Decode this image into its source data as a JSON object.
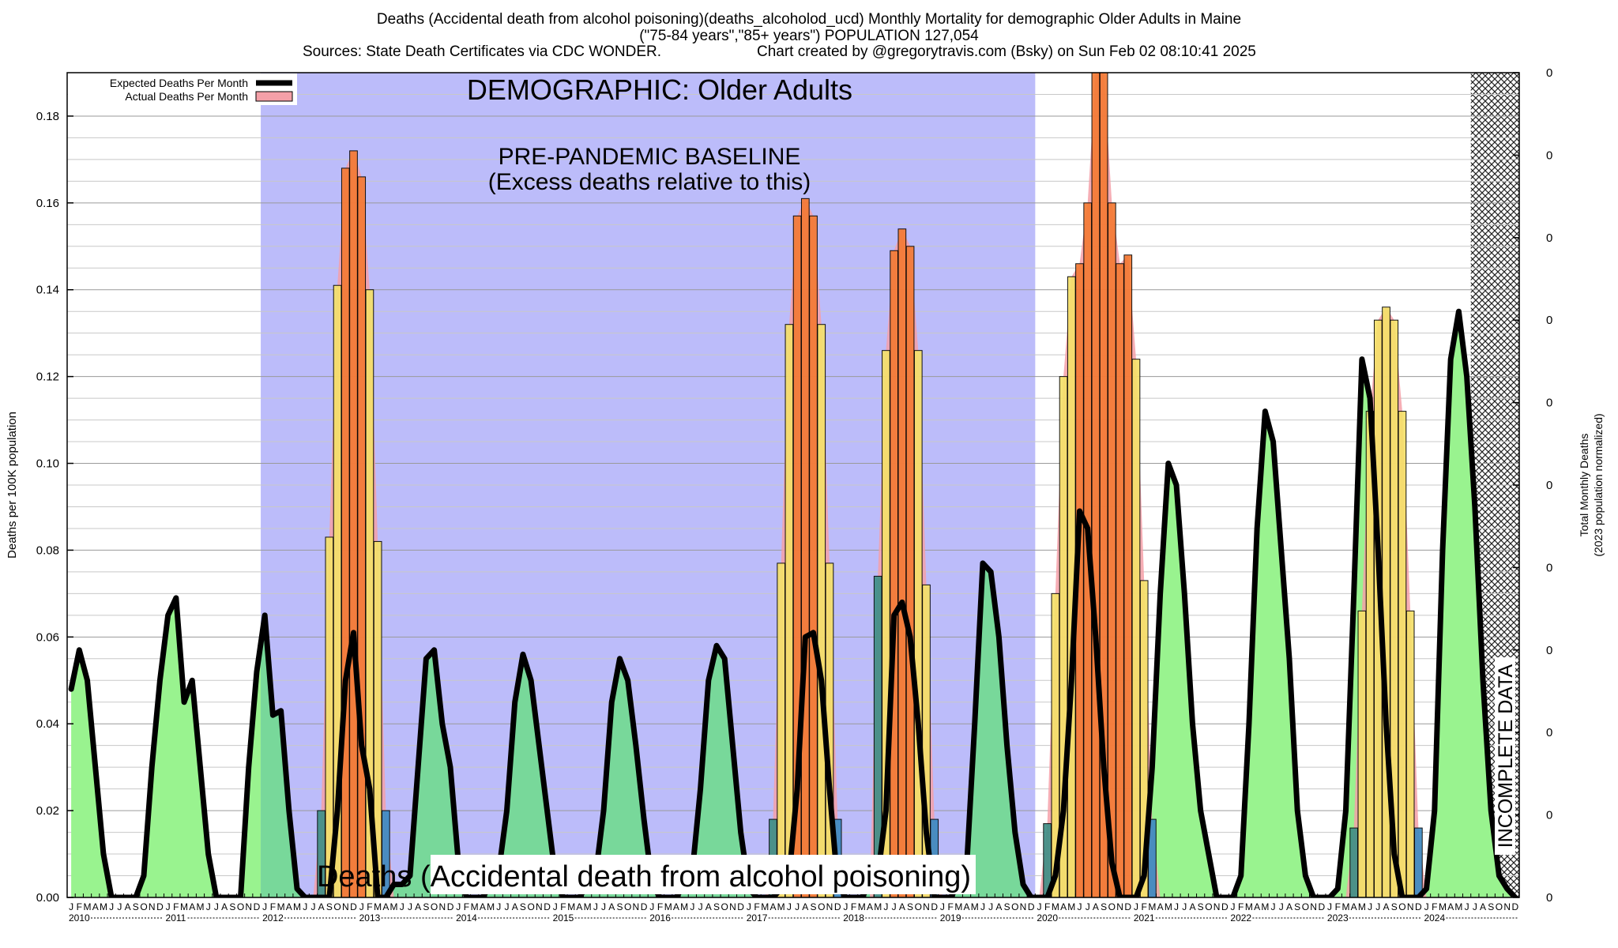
{
  "header": {
    "line1": "Deaths (Accidental death from alcohol poisoning)(deaths_alcoholod_ucd) Monthly Mortality for demographic Older Adults in Maine",
    "line2": "(\"75-84 years\",\"85+ years\") POPULATION 127,054",
    "line3_left": "Sources: State Death Certificates via CDC WONDER.",
    "line3_right": "Chart created by @gregorytravis.com (Bsky) on Sun Feb 02 08:10:41 2025"
  },
  "colors": {
    "baseline_band": "#bcbcfa",
    "expected_fill": "#99f38f",
    "expected_fill_baseline": "#78d89a",
    "expected_line": "#000000",
    "actual_fill": "#f4a0a8",
    "bar_yellow": "#f5e06a",
    "bar_orange": "#f47a34",
    "bar_teal": "#3f8f86",
    "bar_blue": "#3d8ac2"
  },
  "chart_data": {
    "type": "line",
    "ylabel": "Deaths per 100K population",
    "y2label_line1": "Total Monthly Deaths",
    "y2label_line2": "(2023 population normalized)",
    "ylim": [
      0,
      0.19
    ],
    "yticks": [
      "0.00",
      "0.02",
      "0.04",
      "0.06",
      "0.08",
      "0.10",
      "0.12",
      "0.14",
      "0.16",
      "0.18"
    ],
    "y2ticks": [
      "0",
      "0",
      "0",
      "0",
      "0",
      "0",
      "0",
      "0",
      "0",
      "0",
      "0"
    ],
    "legend": {
      "placement": "top-left",
      "expected_label": "Expected Deaths Per Month",
      "actual_label": "Actual Deaths Per Month"
    },
    "annotations": {
      "demographic": "DEMOGRAPHIC: Older Adults",
      "baseline_line1": "PRE-PANDEMIC BASELINE",
      "baseline_line2": "(Excess deaths relative to this)",
      "cause": "Deaths (Accidental death from alcohol poisoning)",
      "incomplete": "INCOMPLETE DATA"
    },
    "baseline_period": [
      "2012-01",
      "2019-12"
    ],
    "incomplete_period": [
      "2024-07",
      "2024-12"
    ],
    "month_letters": [
      "J",
      "F",
      "M",
      "A",
      "M",
      "J",
      "J",
      "A",
      "S",
      "O",
      "N",
      "D"
    ],
    "years": [
      "2010",
      "2011",
      "2012",
      "2013",
      "2014",
      "2015",
      "2016",
      "2017",
      "2018",
      "2019",
      "2020",
      "2021",
      "2022",
      "2023",
      "2024"
    ],
    "x_start": "2010-01",
    "expected": [
      0.048,
      0.057,
      0.05,
      0.03,
      0.01,
      0.0,
      0.0,
      0.0,
      0.0,
      0.005,
      0.03,
      0.05,
      0.065,
      0.069,
      0.045,
      0.05,
      0.03,
      0.01,
      0.0,
      0.0,
      0.0,
      0.0,
      0.03,
      0.052,
      0.065,
      0.042,
      0.043,
      0.02,
      0.002,
      0.0,
      0.0,
      0.0,
      0.0,
      0.02,
      0.05,
      0.061,
      0.035,
      0.025,
      0.0,
      0.0,
      0.003,
      0.003,
      0.005,
      0.03,
      0.055,
      0.057,
      0.04,
      0.03,
      0.008,
      0.0,
      0.0,
      0.0,
      0.003,
      0.006,
      0.02,
      0.045,
      0.056,
      0.05,
      0.035,
      0.02,
      0.005,
      0.0,
      0.0,
      0.0,
      0.003,
      0.005,
      0.02,
      0.045,
      0.055,
      0.05,
      0.035,
      0.018,
      0.003,
      0.0,
      0.0,
      0.0,
      0.003,
      0.006,
      0.025,
      0.05,
      0.058,
      0.055,
      0.035,
      0.015,
      0.002,
      0.0,
      0.0,
      0.0,
      0.002,
      0.005,
      0.025,
      0.06,
      0.061,
      0.05,
      0.025,
      0.003,
      0.0,
      0.0,
      0.0,
      0.003,
      0.005,
      0.02,
      0.065,
      0.068,
      0.06,
      0.04,
      0.015,
      0.0,
      0.0,
      0.0,
      0.003,
      0.007,
      0.04,
      0.077,
      0.075,
      0.06,
      0.035,
      0.015,
      0.003,
      0.0,
      0.0,
      0.0,
      0.005,
      0.02,
      0.05,
      0.089,
      0.085,
      0.06,
      0.03,
      0.008,
      0.0,
      0.0,
      0.0,
      0.005,
      0.03,
      0.07,
      0.1,
      0.095,
      0.07,
      0.04,
      0.02,
      0.01,
      0.0,
      0.0,
      0.0,
      0.005,
      0.04,
      0.085,
      0.112,
      0.105,
      0.08,
      0.055,
      0.02,
      0.005,
      0.0,
      0.0,
      0.0,
      0.002,
      0.02,
      0.07,
      0.124,
      0.115,
      0.08,
      0.04,
      0.01,
      0.0,
      0.0,
      0.0,
      0.002,
      0.02,
      0.08,
      0.124,
      0.135,
      0.12,
      0.09,
      0.05,
      0.02,
      0.005,
      0.002,
      0.0
    ],
    "actual": [
      0,
      0,
      0,
      0,
      0,
      0,
      0,
      0,
      0,
      0,
      0,
      0,
      0,
      0,
      0,
      0,
      0,
      0,
      0,
      0,
      0,
      0,
      0,
      0,
      0,
      0,
      0,
      0,
      0,
      0,
      0,
      0.02,
      0.083,
      0.141,
      0.168,
      0.172,
      0.166,
      0.14,
      0.082,
      0.02,
      0,
      0,
      0,
      0,
      0,
      0,
      0,
      0,
      0,
      0,
      0,
      0,
      0,
      0,
      0,
      0,
      0,
      0,
      0,
      0,
      0,
      0,
      0,
      0,
      0,
      0,
      0,
      0,
      0,
      0,
      0,
      0,
      0,
      0,
      0,
      0,
      0,
      0,
      0,
      0,
      0,
      0,
      0,
      0,
      0,
      0,
      0,
      0.018,
      0.077,
      0.132,
      0.157,
      0.161,
      0.157,
      0.132,
      0.077,
      0.018,
      0,
      0,
      0,
      0,
      0.074,
      0.126,
      0.149,
      0.154,
      0.15,
      0.126,
      0.072,
      0.018,
      0,
      0,
      0,
      0,
      0,
      0,
      0,
      0,
      0,
      0,
      0,
      0,
      0,
      0.017,
      0.07,
      0.12,
      0.143,
      0.146,
      0.16,
      0.19,
      0.19,
      0.16,
      0.146,
      0.148,
      0.124,
      0.073,
      0.018,
      0,
      0,
      0,
      0,
      0,
      0,
      0,
      0,
      0,
      0,
      0,
      0,
      0,
      0,
      0,
      0,
      0,
      0,
      0,
      0,
      0,
      0,
      0,
      0,
      0.016,
      0.066,
      0.112,
      0.133,
      0.136,
      0.133,
      0.112,
      0.066,
      0.016,
      0,
      0,
      0,
      0,
      0,
      0,
      0,
      0,
      0,
      0,
      0,
      0
    ]
  }
}
